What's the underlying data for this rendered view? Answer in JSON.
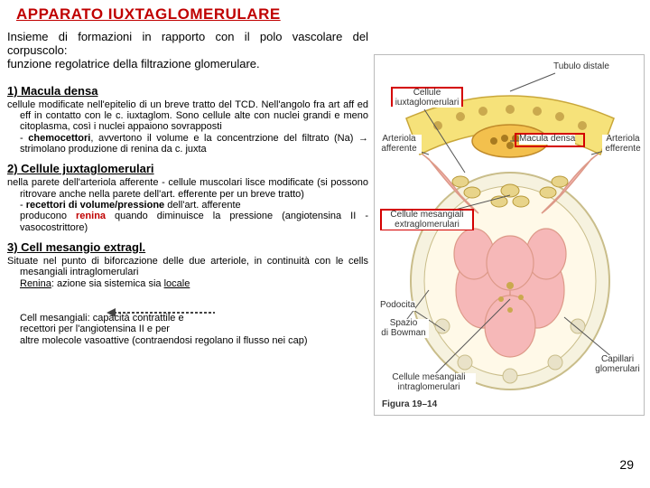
{
  "title_color": "#c00000",
  "title_fontsize": 17,
  "intro_fontsize": 13,
  "head_fontsize": 13,
  "body_fontsize": 11,
  "small_fontsize": 11,
  "pagenum_fontsize": 14,
  "title": "APPARATO IUXTAGLOMERULARE",
  "intro": "Insieme di formazioni in rapporto con il polo vascolare del corpuscolo:\nfunzione regolatrice della filtrazione glomerulare.",
  "s1_head": "1) Macula densa",
  "s1_body": "cellule modificate nell'epitelio di un breve tratto del TCD. Nell'angolo fra art aff ed eff in contatto con le c. iuxtaglom. Sono cellule alte con nuclei grandi e meno citoplasma, così i nuclei appaiono sovrapposti\n- chemocettori, avvertono il volume e la concentrzione del filtrato (Na) → strimolano produzione di renina da c. juxta",
  "s2_head": "2) Cellule juxtaglomerulari",
  "s2_body_a": "nella parete dell'arteriola afferente - cellule muscolari lisce modificate (si possono ritrovare anche nella parete dell'art. efferente per un breve tratto)\n- recettori di volume/pressione dell'art. afferente\nproducono ",
  "s2_renina": "renina",
  "s2_body_b": " quando diminuisce la pressione (angiotensina II -vasocostrittore)",
  "s3_head": "3) Cell mesangio extragl.",
  "s3_body": "Situate nel punto di biforcazione delle due arteriole, in continuità con le cells mesangiali intraglomerulari\nRenina: azione sia sistemica sia locale",
  "footnote": "Cell mesangiali: capacità contrattile e\nrecettori per l'angiotensina II e per\naltre molecole vasoattive (contraendosi regolano il flusso nei cap)",
  "page_number": "29",
  "fig": {
    "tubulo_distale": "Tubulo distale",
    "cellule_iuxta": "Cellule\niuxtaglomerulari",
    "macula_densa": "Macula densa",
    "arteriola_aff": "Arteriola\nafferente",
    "arteriola_eff": "Arteriola\nefferente",
    "mesang_extra": "Cellule mesangiali\nextraglomerulari",
    "podocita": "Podocita",
    "spazio": "Spazio\ndi Bowman",
    "mesang_intra": "Cellule mesangiali\nintraglomerulari",
    "capillari": "Capillari\nglomerulari",
    "caption": "Figura 19–14",
    "colors": {
      "tubule_fill": "#f6e27a",
      "tubule_stroke": "#c9a73a",
      "macula_fill": "#f3c04d",
      "vessel_pink": "#f6b8b8",
      "vessel_edge": "#d77",
      "capsule": "#e9e2c8",
      "nucleus": "#caa94e"
    }
  }
}
